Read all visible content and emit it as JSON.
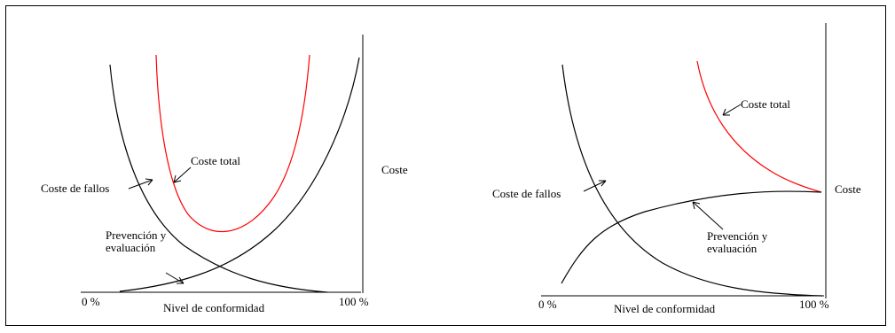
{
  "diagrams": [
    {
      "cost_axis_label": "Coste",
      "x_axis_label": "Nivel de conformidad",
      "x_start_label": "0 %",
      "x_end_label": "100 %",
      "curve_labels": {
        "failure_cost": "Coste de fallos",
        "total_cost": "Coste total",
        "prevention": "Prevención y\nevaluación"
      }
    },
    {
      "cost_axis_label": "Coste",
      "x_axis_label": "Nivel de conformidad",
      "x_start_label": "0 %",
      "x_end_label": "100 %",
      "curve_labels": {
        "failure_cost": "Coste de fallos",
        "total_cost": "Coste total",
        "prevention": "Prevención y\nevaluación"
      }
    }
  ],
  "colors": {
    "total_cost_curve": "#ff0000",
    "other_curves": "#000000"
  }
}
